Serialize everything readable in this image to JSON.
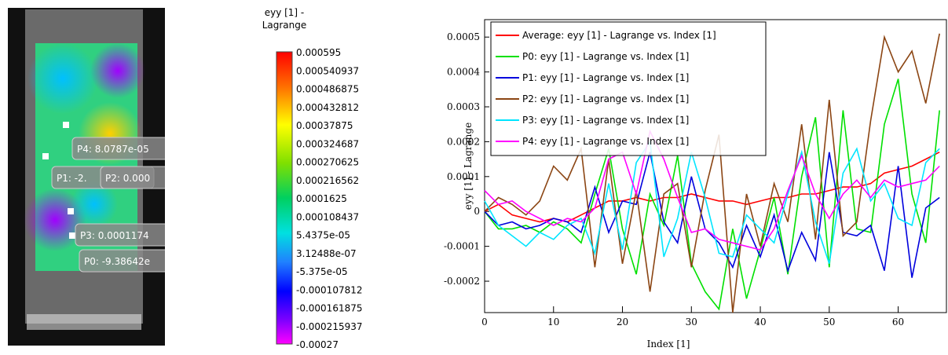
{
  "image_panel": {
    "labels": [
      "P4: 8.0787e-05",
      "P1: -2.",
      "P2: 0.000",
      "P3: 0.0001174",
      "P0: -9.38642e"
    ]
  },
  "colorbar": {
    "title": [
      "eyy [1] -",
      "Lagrange"
    ],
    "labels": [
      "0.000595",
      "0.000540937",
      "0.000486875",
      "0.000432812",
      "0.00037875",
      "0.000324687",
      "0.000270625",
      "0.000216562",
      "0.0001625",
      "0.000108437",
      "5.4375e-05",
      "3.12488e-07",
      "-5.375e-05",
      "-0.000107812",
      "-0.000161875",
      "-0.000215937",
      "-0.00027"
    ]
  },
  "chart_data": {
    "type": "line",
    "x_label": "Index [1]",
    "y_label": "eyy [1] - Lagrange",
    "x": [
      0,
      2,
      4,
      6,
      8,
      10,
      12,
      14,
      16,
      18,
      20,
      22,
      24,
      26,
      28,
      30,
      32,
      34,
      36,
      38,
      40,
      42,
      44,
      46,
      48,
      50,
      52,
      54,
      56,
      58,
      60,
      62,
      64,
      66
    ],
    "xlim": [
      0,
      67
    ],
    "xticks": [
      0,
      10,
      20,
      30,
      40,
      50,
      60
    ],
    "ylim": [
      -0.00029,
      0.00055
    ],
    "yticks": [
      -0.0002,
      -0.0001,
      0,
      0.0001,
      0.0002,
      0.0003,
      0.0004,
      0.0005
    ],
    "legend": "top-left",
    "series": [
      {
        "name": "Average: eyy [1] - Lagrange vs. Index [1]",
        "color": "#ff0000",
        "values": [
          0,
          2e-05,
          -1e-05,
          -2e-05,
          -3e-05,
          -2e-05,
          -3e-05,
          -1e-05,
          1e-05,
          3e-05,
          3e-05,
          4e-05,
          3e-05,
          4e-05,
          4e-05,
          5e-05,
          4e-05,
          3e-05,
          3e-05,
          2e-05,
          3e-05,
          4e-05,
          4e-05,
          5e-05,
          5e-05,
          6e-05,
          7e-05,
          7e-05,
          8e-05,
          0.00011,
          0.00012,
          0.00013,
          0.00015,
          0.00017
        ]
      },
      {
        "name": "P0: eyy [1] - Lagrange vs. Index [1]",
        "color": "#00e000",
        "values": [
          0,
          -5e-05,
          -5e-05,
          -4e-05,
          -6e-05,
          -3e-05,
          -5e-05,
          -9e-05,
          5e-05,
          0.00018,
          -5e-05,
          -0.00018,
          5e-05,
          -4e-05,
          0.00016,
          -0.00015,
          -0.00023,
          -0.00028,
          -5e-05,
          -0.00025,
          -0.00011,
          4e-05,
          -0.00018,
          0.0001,
          0.00027,
          -0.00016,
          0.00029,
          -5e-05,
          -6e-05,
          0.00025,
          0.00038,
          5e-05,
          -9e-05,
          0.00029
        ]
      },
      {
        "name": "P1: eyy [1] - Lagrange vs. Index [1]",
        "color": "#0000dd",
        "values": [
          0,
          -4e-05,
          -3e-05,
          -5e-05,
          -4e-05,
          -2e-05,
          -3e-05,
          -6e-05,
          7e-05,
          -6e-05,
          3e-05,
          2e-05,
          0.00017,
          -3e-05,
          -9e-05,
          0.0001,
          -5e-05,
          -9e-05,
          -0.00016,
          -4e-05,
          -0.00013,
          -1e-05,
          -0.00017,
          -6e-05,
          -0.00014,
          0.00017,
          -6e-05,
          -7e-05,
          -4e-05,
          -0.00017,
          0.00013,
          -0.00019,
          1e-05,
          4e-05
        ]
      },
      {
        "name": "P2: eyy [1] - Lagrange vs. Index [1]",
        "color": "#8b4513",
        "values": [
          0,
          4e-05,
          2e-05,
          -1e-05,
          3e-05,
          0.00013,
          9e-05,
          0.00018,
          -0.00016,
          0.00015,
          -0.00015,
          6e-05,
          -0.00023,
          5e-05,
          8e-05,
          -0.00016,
          6e-05,
          0.00022,
          -0.00029,
          5e-05,
          -0.0001,
          8e-05,
          -3e-05,
          0.00025,
          -8e-05,
          0.00032,
          -7e-05,
          -3e-05,
          0.00026,
          0.0005,
          0.0004,
          0.00046,
          0.00031,
          0.00051
        ]
      },
      {
        "name": "P3: eyy [1] - Lagrange vs. Index [1]",
        "color": "#00e5ff",
        "values": [
          3e-05,
          -4e-05,
          -7e-05,
          -0.0001,
          -6e-05,
          -8e-05,
          -4e-05,
          -2e-05,
          -0.00012,
          8e-05,
          -0.00011,
          0.00014,
          0.0002,
          -0.00013,
          -2e-05,
          0.00017,
          4e-05,
          -0.00012,
          -0.00013,
          -1e-05,
          -5e-05,
          -9e-05,
          5e-05,
          0.00017,
          -3e-05,
          -0.00015,
          0.00011,
          0.00018,
          3e-05,
          8e-05,
          -2e-05,
          -4e-05,
          0.00014,
          0.00018
        ]
      },
      {
        "name": "P4: eyy [1] - Lagrange vs. Index [1]",
        "color": "#ff00ff",
        "values": [
          6e-05,
          2e-05,
          3e-05,
          0,
          -2e-05,
          -4e-05,
          -2e-05,
          -3e-05,
          1e-05,
          0.00015,
          0.00017,
          5e-05,
          0.00023,
          0.00015,
          4e-05,
          -6e-05,
          -5e-05,
          -8e-05,
          -9e-05,
          -0.0001,
          -0.00011,
          -5e-05,
          6e-05,
          0.00016,
          5e-05,
          -2e-05,
          5e-05,
          9e-05,
          4e-05,
          9e-05,
          7e-05,
          8e-05,
          9e-05,
          0.00013
        ]
      }
    ]
  }
}
